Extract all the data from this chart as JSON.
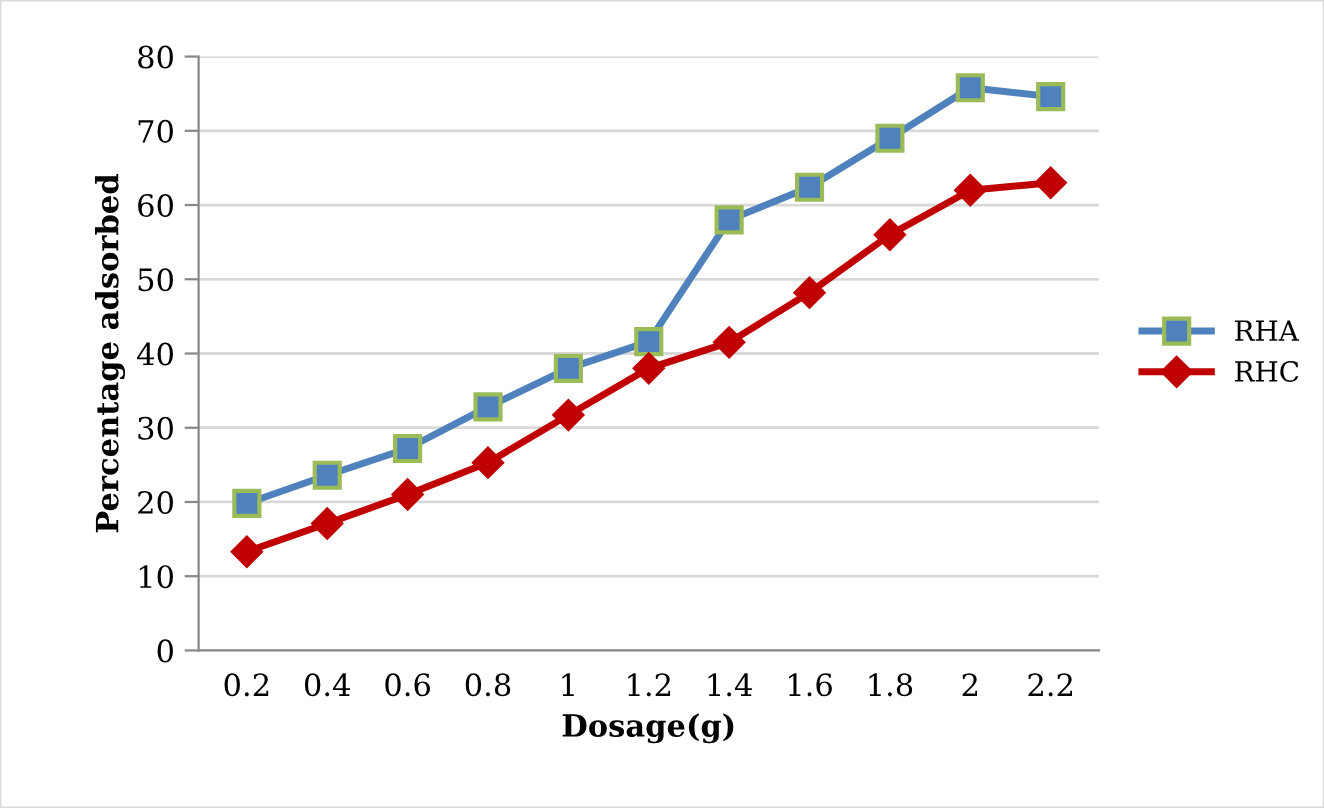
{
  "chart_data": {
    "type": "line",
    "xlabel": "Dosage(g)",
    "ylabel": "Percentage adsorbed",
    "categories": [
      "0.2",
      "0.4",
      "0.6",
      "0.8",
      "1",
      "1.2",
      "1.4",
      "1.6",
      "1.8",
      "2",
      "2.2"
    ],
    "series": [
      {
        "name": "RHA",
        "color": "#4f81bd",
        "marker": "square",
        "values": [
          19.8,
          23.6,
          27.2,
          32.8,
          38,
          41.6,
          58,
          62.4,
          69,
          75.8,
          74.6
        ]
      },
      {
        "name": "RHC",
        "color": "#c00000",
        "marker": "diamond",
        "values": [
          13.3,
          17.1,
          21,
          25.3,
          31.7,
          38,
          41.5,
          48.2,
          56,
          62,
          63
        ]
      }
    ],
    "ylim": [
      0,
      80
    ],
    "yticks": [
      0,
      10,
      20,
      30,
      40,
      50,
      60,
      70,
      80
    ],
    "grid": "y",
    "legend": "right"
  }
}
